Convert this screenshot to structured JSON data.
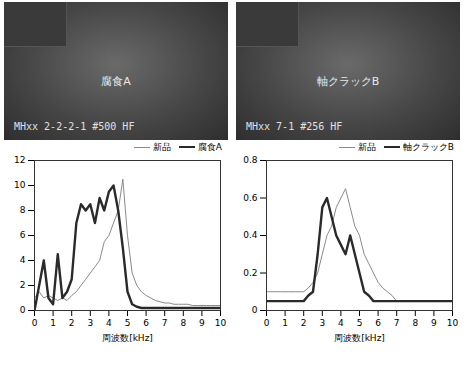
{
  "images": [
    {
      "labels": [
        "腐食A",
        "MHxx 2-2-2-1 #500 HF"
      ]
    },
    {
      "labels": [
        "軸クラックB",
        "MHxx 7-1 #256 HF"
      ]
    }
  ],
  "chart_data": [
    {
      "type": "line",
      "xlabel": "周波数[kHz]",
      "x": [
        0,
        0.25,
        0.5,
        0.75,
        1,
        1.25,
        1.5,
        1.75,
        2,
        2.25,
        2.5,
        2.75,
        3,
        3.25,
        3.5,
        3.75,
        4,
        4.25,
        4.5,
        4.75,
        5,
        5.25,
        5.5,
        5.75,
        6,
        6.25,
        6.5,
        6.75,
        7,
        7.25,
        7.5,
        7.75,
        8,
        8.25,
        8.5,
        8.75,
        9,
        9.25,
        9.5,
        9.75,
        10
      ],
      "series": [
        {
          "name": "新品",
          "color": "#8a8a8a",
          "line_style": "solid",
          "values": [
            1,
            1.5,
            1,
            1.2,
            1,
            0.8,
            1,
            0.8,
            1.2,
            1.5,
            2,
            2.5,
            3,
            3.5,
            4,
            5.5,
            6,
            7,
            8,
            10.5,
            6,
            3,
            2,
            1.5,
            1.2,
            1,
            0.8,
            0.7,
            0.6,
            0.6,
            0.5,
            0.5,
            0.5,
            0.5,
            0.4,
            0.4,
            0.4,
            0.4,
            0.4,
            0.4,
            0.4
          ]
        },
        {
          "name": "腐食A",
          "color": "#2a2a2a",
          "line_style": "solid",
          "values": [
            0,
            2,
            4,
            1,
            0.5,
            4.5,
            1,
            1.5,
            2.5,
            7,
            8.5,
            8,
            8.5,
            7,
            9,
            8,
            9.5,
            10,
            8,
            5,
            1.5,
            0.5,
            0.3,
            0.2,
            0.2,
            0.2,
            0.2,
            0.2,
            0.2,
            0.2,
            0.2,
            0.2,
            0.2,
            0.2,
            0.2,
            0.2,
            0.2,
            0.2,
            0.2,
            0.2,
            0.2
          ]
        }
      ],
      "xlim": [
        0,
        10
      ],
      "xticks": [
        0,
        1,
        2,
        3,
        4,
        5,
        6,
        7,
        8,
        9,
        10
      ],
      "ylim": [
        0,
        12
      ],
      "yticks": [
        0,
        2,
        4,
        6,
        8,
        10,
        12
      ],
      "legend": "top-right"
    },
    {
      "type": "line",
      "xlabel": "周波数[kHz]",
      "x": [
        0,
        0.25,
        0.5,
        0.75,
        1,
        1.25,
        1.5,
        1.75,
        2,
        2.25,
        2.5,
        2.75,
        3,
        3.25,
        3.5,
        3.75,
        4,
        4.25,
        4.5,
        4.75,
        5,
        5.25,
        5.5,
        5.75,
        6,
        6.25,
        6.5,
        6.75,
        7,
        7.25,
        7.5,
        7.75,
        8,
        8.25,
        8.5,
        8.75,
        9,
        9.25,
        9.5,
        9.75,
        10
      ],
      "series": [
        {
          "name": "新品",
          "color": "#8a8a8a",
          "line_style": "solid",
          "values": [
            0.1,
            0.1,
            0.1,
            0.1,
            0.1,
            0.1,
            0.1,
            0.1,
            0.1,
            0.12,
            0.15,
            0.2,
            0.3,
            0.4,
            0.45,
            0.55,
            0.6,
            0.65,
            0.55,
            0.45,
            0.4,
            0.3,
            0.25,
            0.2,
            0.15,
            0.12,
            0.1,
            0.08,
            0.05,
            0.05,
            0.05,
            0.05,
            0.05,
            0.05,
            0.05,
            0.05,
            0.05,
            0.05,
            0.05,
            0.05,
            0.05
          ]
        },
        {
          "name": "軸クラックB",
          "color": "#2a2a2a",
          "line_style": "solid",
          "values": [
            0.05,
            0.05,
            0.05,
            0.05,
            0.05,
            0.05,
            0.05,
            0.05,
            0.05,
            0.08,
            0.1,
            0.3,
            0.55,
            0.6,
            0.5,
            0.4,
            0.35,
            0.3,
            0.4,
            0.3,
            0.2,
            0.1,
            0.08,
            0.05,
            0.05,
            0.05,
            0.05,
            0.05,
            0.05,
            0.05,
            0.05,
            0.05,
            0.05,
            0.05,
            0.05,
            0.05,
            0.05,
            0.05,
            0.05,
            0.05,
            0.05
          ]
        }
      ],
      "xlim": [
        0,
        10
      ],
      "xticks": [
        0,
        1,
        2,
        3,
        4,
        5,
        6,
        7,
        8,
        9,
        10
      ],
      "ylim": [
        0,
        0.8
      ],
      "yticks": [
        0,
        0.2,
        0.4,
        0.6,
        0.8
      ],
      "legend": "top-right"
    }
  ]
}
